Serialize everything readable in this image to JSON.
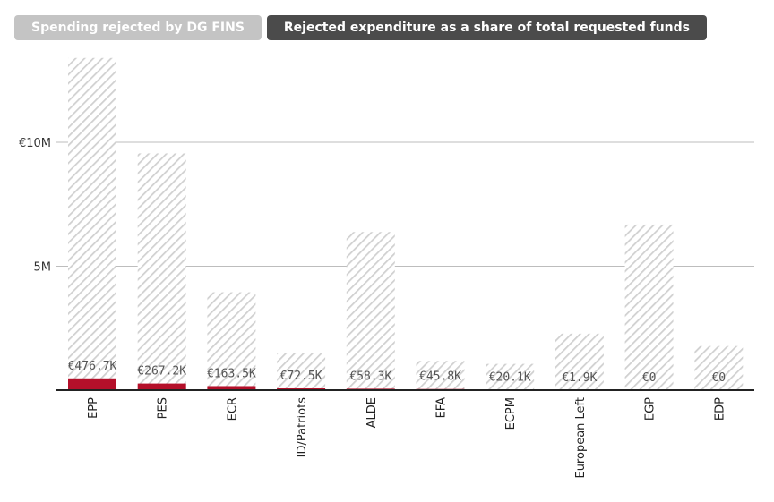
{
  "tabs": [
    {
      "label": "Spending rejected by DG FINS",
      "active": false
    },
    {
      "label": "Rejected expenditure as a share of total requested funds",
      "active": true
    }
  ],
  "colors": {
    "rejected": "#b4102a",
    "total_hatch": "#d0d0d0",
    "gridline": "#bdbdbd",
    "axis": "#222222",
    "tab_active": "#4b4b4b",
    "tab_inactive": "#c4c4c4"
  },
  "chart_data": {
    "type": "bar",
    "stacked_overlay": true,
    "categories": [
      "EPP",
      "PES",
      "ECR",
      "ID/Patriots",
      "ALDE",
      "EFA",
      "ECPM",
      "European Left",
      "EGP",
      "EDP"
    ],
    "series": [
      {
        "values": [
          13400000,
          9550000,
          3950000,
          1500000,
          6380000,
          1180000,
          1060000,
          2280000,
          6680000,
          1780000
        ]
      },
      {
        "values": [
          476700,
          267200,
          163500,
          72500,
          58300,
          45800,
          20100,
          1900,
          0,
          0
        ]
      }
    ],
    "data_labels": [
      "€476.7K",
      "€267.2K",
      "€163.5K",
      "€72.5K",
      "€58.3K",
      "€45.8K",
      "€20.1K",
      "€1.9K",
      "€0",
      "€0"
    ],
    "y_ticks": [
      {
        "value": 5000000,
        "label": "5M"
      },
      {
        "value": 10000000,
        "label": "€10M"
      }
    ],
    "ylim": [
      0,
      13500000
    ],
    "grid": true,
    "legend": "none"
  }
}
